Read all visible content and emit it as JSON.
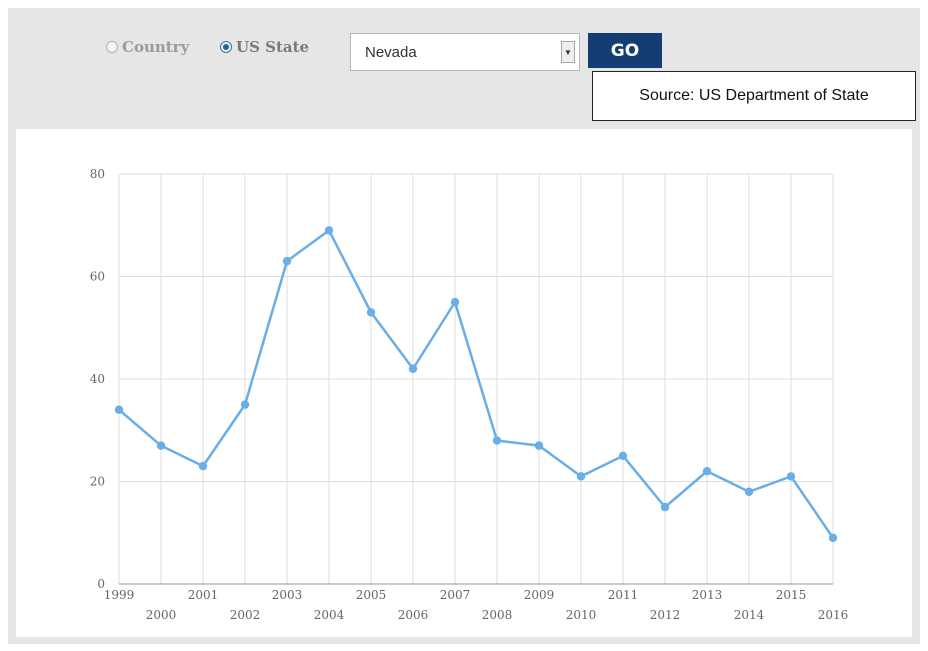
{
  "controls": {
    "radio_country_label": "Country",
    "radio_state_label": "US State",
    "selected_mode": "US State",
    "state_value": "Nevada",
    "go_label": "GO",
    "source_text": "Source: US Department of State"
  },
  "icons": {
    "dropdown": "chevron-down-icon"
  },
  "colors": {
    "series": "#6aaee8",
    "grid": "#dddddd",
    "go_button": "#143d73"
  },
  "chart_data": {
    "type": "line",
    "title": "",
    "xlabel": "",
    "ylabel": "",
    "x": [
      "1999",
      "2000",
      "2001",
      "2002",
      "2003",
      "2004",
      "2005",
      "2006",
      "2007",
      "2008",
      "2009",
      "2010",
      "2011",
      "2012",
      "2013",
      "2014",
      "2015",
      "2016"
    ],
    "series": [
      {
        "values": [
          34,
          27,
          23,
          35,
          63,
          69,
          53,
          42,
          55,
          28,
          27,
          21,
          25,
          15,
          22,
          18,
          21,
          9
        ]
      }
    ],
    "ylim": [
      0,
      80
    ],
    "yticks": [
      0,
      20,
      40,
      60,
      80
    ],
    "grid": true,
    "legend": "none",
    "x_tick_labels_staggered": true
  }
}
